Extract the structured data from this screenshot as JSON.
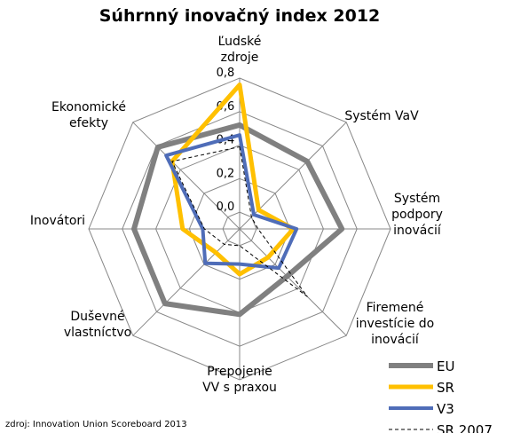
{
  "chart_data": {
    "type": "radar",
    "title": "Súhrnný inovačný index 2012",
    "categories": [
      "Ľudské\nzdroje",
      "Systém VaV",
      "Systém\npodpory\ninovácií",
      "Firemené\ninvestície do\ninovácií",
      "Prepojenie\nVV s praxou",
      "Duševné\nvlastníctvo",
      "Inovátori",
      "Ekonomické\nefekty"
    ],
    "series": [
      {
        "name": "EU",
        "color": "#808080",
        "width": 6,
        "values": [
          0.52,
          0.47,
          0.51,
          0.3,
          0.41,
          0.53,
          0.53,
          0.59
        ]
      },
      {
        "name": "SR",
        "color": "#ffc000",
        "width": 5,
        "values": [
          0.76,
          0.06,
          0.22,
          0.14,
          0.17,
          0.1,
          0.24,
          0.47
        ]
      },
      {
        "name": "V3",
        "color": "#4f6db8",
        "width": 4,
        "values": [
          0.46,
          0.02,
          0.24,
          0.23,
          0.11,
          0.19,
          0.12,
          0.52
        ]
      },
      {
        "name": "SR 2007",
        "color": "#000000",
        "width": 1,
        "dashed": true,
        "values": [
          0.39,
          0.0,
          0.01,
          0.47,
          0.0,
          0.03,
          0.11,
          0.47
        ]
      }
    ],
    "ylim": [
      -0.1,
      0.8
    ],
    "yticks": [
      {
        "value": 0.0,
        "label": "0,0"
      },
      {
        "value": 0.2,
        "label": "0,2"
      },
      {
        "value": 0.4,
        "label": "0,4"
      },
      {
        "value": 0.6,
        "label": "0,6"
      },
      {
        "value": 0.8,
        "label": "0,8"
      }
    ],
    "grid": true,
    "source": "zdroj: Innovation Union Scoreboard 2013"
  }
}
